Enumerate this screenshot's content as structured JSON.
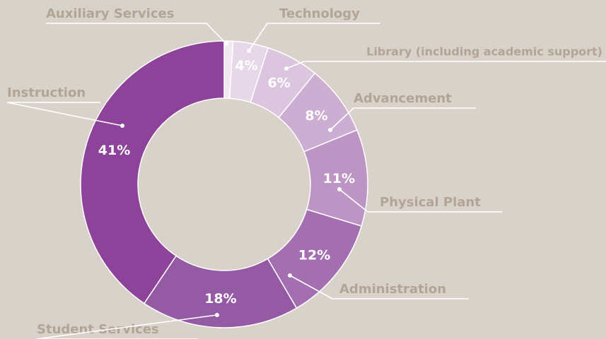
{
  "chart_data": {
    "type": "donut",
    "categories": [
      "Auxiliary Services",
      "Technology",
      "Library (including academic support)",
      "Advancement",
      "Physical Plant",
      "Administration",
      "Student Services",
      "Instruction"
    ],
    "values": [
      1,
      4,
      6,
      8,
      11,
      12,
      18,
      41
    ],
    "value_labels": [
      null,
      "4%",
      "6%",
      "8%",
      "11%",
      "12%",
      "18%",
      "41%"
    ],
    "colors": [
      "#f1e8f1",
      "#e7d8e9",
      "#dbc5df",
      "#cdaed3",
      "#bd95c5",
      "#a46fb0",
      "#955aa4",
      "#8c4399"
    ]
  }
}
